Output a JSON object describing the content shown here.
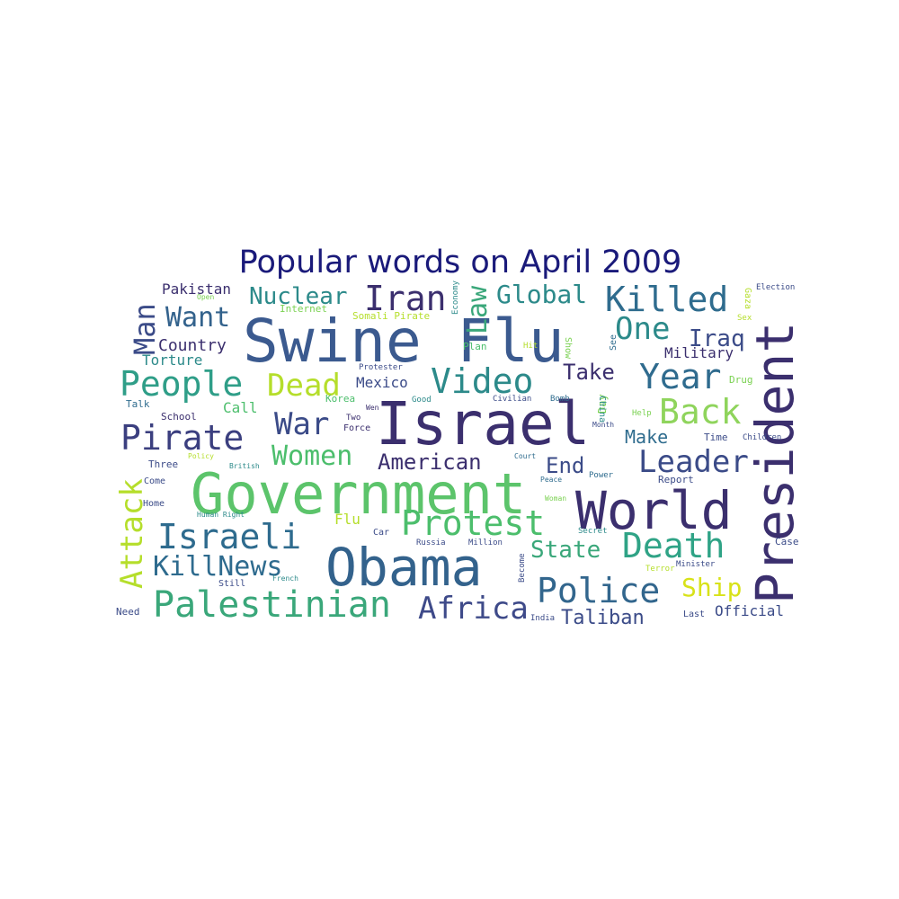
{
  "chart_data": {
    "type": "wordcloud",
    "title": "Popular words on April 2009",
    "colors": {
      "title": "#1a1a7a",
      "background": "#ffffff"
    },
    "words": [
      {
        "text": "Swine Flu",
        "color": "#3b5a8f"
      },
      {
        "text": "Israel",
        "color": "#3b2f6e"
      },
      {
        "text": "Government",
        "color": "#5cc46b"
      },
      {
        "text": "Obama",
        "color": "#33628c"
      },
      {
        "text": "President",
        "color": "#3b2f6e"
      },
      {
        "text": "World",
        "color": "#3b2f6e"
      },
      {
        "text": "Palestinian",
        "color": "#3aa77a"
      },
      {
        "text": "Protest",
        "color": "#4cbe6c"
      },
      {
        "text": "People",
        "color": "#2f9e88"
      },
      {
        "text": "Israeli",
        "color": "#2e6b8e"
      },
      {
        "text": "Death",
        "color": "#2fa386"
      },
      {
        "text": "Police",
        "color": "#32668d"
      },
      {
        "text": "Video",
        "color": "#2c8a8a"
      },
      {
        "text": "Pirate",
        "color": "#3b3f7f"
      },
      {
        "text": "Killed",
        "color": "#2f6c8e"
      },
      {
        "text": "Africa",
        "color": "#3e4a89"
      },
      {
        "text": "Leader",
        "color": "#3b4b88"
      },
      {
        "text": "Year",
        "color": "#2f6b8e"
      },
      {
        "text": "Back",
        "color": "#8fd45c"
      },
      {
        "text": "Iran",
        "color": "#3b2f6e"
      },
      {
        "text": "Attack",
        "color": "#b5de2b"
      },
      {
        "text": "KillNews",
        "color": "#2e6b8e"
      },
      {
        "text": "War",
        "color": "#3b4b88"
      },
      {
        "text": "Dead",
        "color": "#b5de2b"
      },
      {
        "text": "Man",
        "color": "#3b4b88"
      },
      {
        "text": "Women",
        "color": "#4cbe6c"
      },
      {
        "text": "Global",
        "color": "#2c8a8a"
      },
      {
        "text": "Nuclear",
        "color": "#2c8a8a"
      },
      {
        "text": "One",
        "color": "#2c8a8a"
      },
      {
        "text": "Want",
        "color": "#33628c"
      },
      {
        "text": "Law",
        "color": "#3aa77a"
      },
      {
        "text": "Ship",
        "color": "#d8e219"
      },
      {
        "text": "American",
        "color": "#3b2f6e"
      },
      {
        "text": "State",
        "color": "#3aa77a"
      },
      {
        "text": "Iraq",
        "color": "#3b4b88"
      },
      {
        "text": "Taliban",
        "color": "#3b4b88"
      },
      {
        "text": "End",
        "color": "#3b4b88"
      },
      {
        "text": "Take",
        "color": "#3b2f6e"
      },
      {
        "text": "Make",
        "color": "#2f6c8e"
      },
      {
        "text": "Country",
        "color": "#3b2f6e"
      },
      {
        "text": "Military",
        "color": "#3b2f6e"
      },
      {
        "text": "Pakistan",
        "color": "#3b2f6e"
      },
      {
        "text": "Torture",
        "color": "#2c8a8a"
      },
      {
        "text": "Mexico",
        "color": "#3b4b88"
      },
      {
        "text": "Call",
        "color": "#4cbe6c"
      },
      {
        "text": "Flu",
        "color": "#b5de2b"
      },
      {
        "text": "Official",
        "color": "#3b4b88"
      },
      {
        "text": "Internet",
        "color": "#7ad151"
      },
      {
        "text": "Somali Pirate",
        "color": "#b5de2b"
      },
      {
        "text": "Economy",
        "color": "#2c8a8a"
      },
      {
        "text": "Plan",
        "color": "#4cbe6c"
      },
      {
        "text": "Hit",
        "color": "#b5de2b"
      },
      {
        "text": "Show",
        "color": "#7ad151"
      },
      {
        "text": "See",
        "color": "#2f6c8e"
      },
      {
        "text": "Drug",
        "color": "#7ad151"
      },
      {
        "text": "Sex",
        "color": "#b5de2b"
      },
      {
        "text": "Gaza",
        "color": "#b5de2b"
      },
      {
        "text": "Election",
        "color": "#3b4b88"
      },
      {
        "text": "Open",
        "color": "#7ad151"
      },
      {
        "text": "Protester",
        "color": "#3b4b88"
      },
      {
        "text": "Talk",
        "color": "#2f6c8e"
      },
      {
        "text": "Korea",
        "color": "#4cbe6c"
      },
      {
        "text": "Good",
        "color": "#2c8a8a"
      },
      {
        "text": "Civilian",
        "color": "#3b4b88"
      },
      {
        "text": "Bomb",
        "color": "#2f6c8e"
      },
      {
        "text": "Day",
        "color": "#7ad151"
      },
      {
        "text": "China",
        "color": "#2c8a8a"
      },
      {
        "text": "Help",
        "color": "#7ad151"
      },
      {
        "text": "Month",
        "color": "#3b4b88"
      },
      {
        "text": "School",
        "color": "#3b2f6e"
      },
      {
        "text": "Wen",
        "color": "#3b2f6e"
      },
      {
        "text": "Two",
        "color": "#3b2f6e"
      },
      {
        "text": "Force",
        "color": "#3b2f6e"
      },
      {
        "text": "Time",
        "color": "#3b4b88"
      },
      {
        "text": "Children",
        "color": "#3b4b88"
      },
      {
        "text": "Three",
        "color": "#3b4b88"
      },
      {
        "text": "Policy",
        "color": "#b5de2b"
      },
      {
        "text": "British",
        "color": "#2c8a8a"
      },
      {
        "text": "Court",
        "color": "#2f6c8e"
      },
      {
        "text": "Come",
        "color": "#3b4b88"
      },
      {
        "text": "Peace",
        "color": "#2f6c8e"
      },
      {
        "text": "Power",
        "color": "#2f6c8e"
      },
      {
        "text": "Report",
        "color": "#3b4b88"
      },
      {
        "text": "Home",
        "color": "#3b4b88"
      },
      {
        "text": "Human Right",
        "color": "#2c8a8a"
      },
      {
        "text": "Woman",
        "color": "#7ad151"
      },
      {
        "text": "Car",
        "color": "#3b4b88"
      },
      {
        "text": "Secret",
        "color": "#2c8a8a"
      },
      {
        "text": "Russia",
        "color": "#3b4b88"
      },
      {
        "text": "Million",
        "color": "#3b4b88"
      },
      {
        "text": "Case",
        "color": "#3b4b88"
      },
      {
        "text": "Still",
        "color": "#3b4b88"
      },
      {
        "text": "French",
        "color": "#2c8a8a"
      },
      {
        "text": "Become",
        "color": "#3b4b88"
      },
      {
        "text": "Terror",
        "color": "#b5de2b"
      },
      {
        "text": "Minister",
        "color": "#3b4b88"
      },
      {
        "text": "Need",
        "color": "#3b4b88"
      },
      {
        "text": "India",
        "color": "#3b4b88"
      },
      {
        "text": "Last",
        "color": "#3b4b88"
      }
    ]
  }
}
